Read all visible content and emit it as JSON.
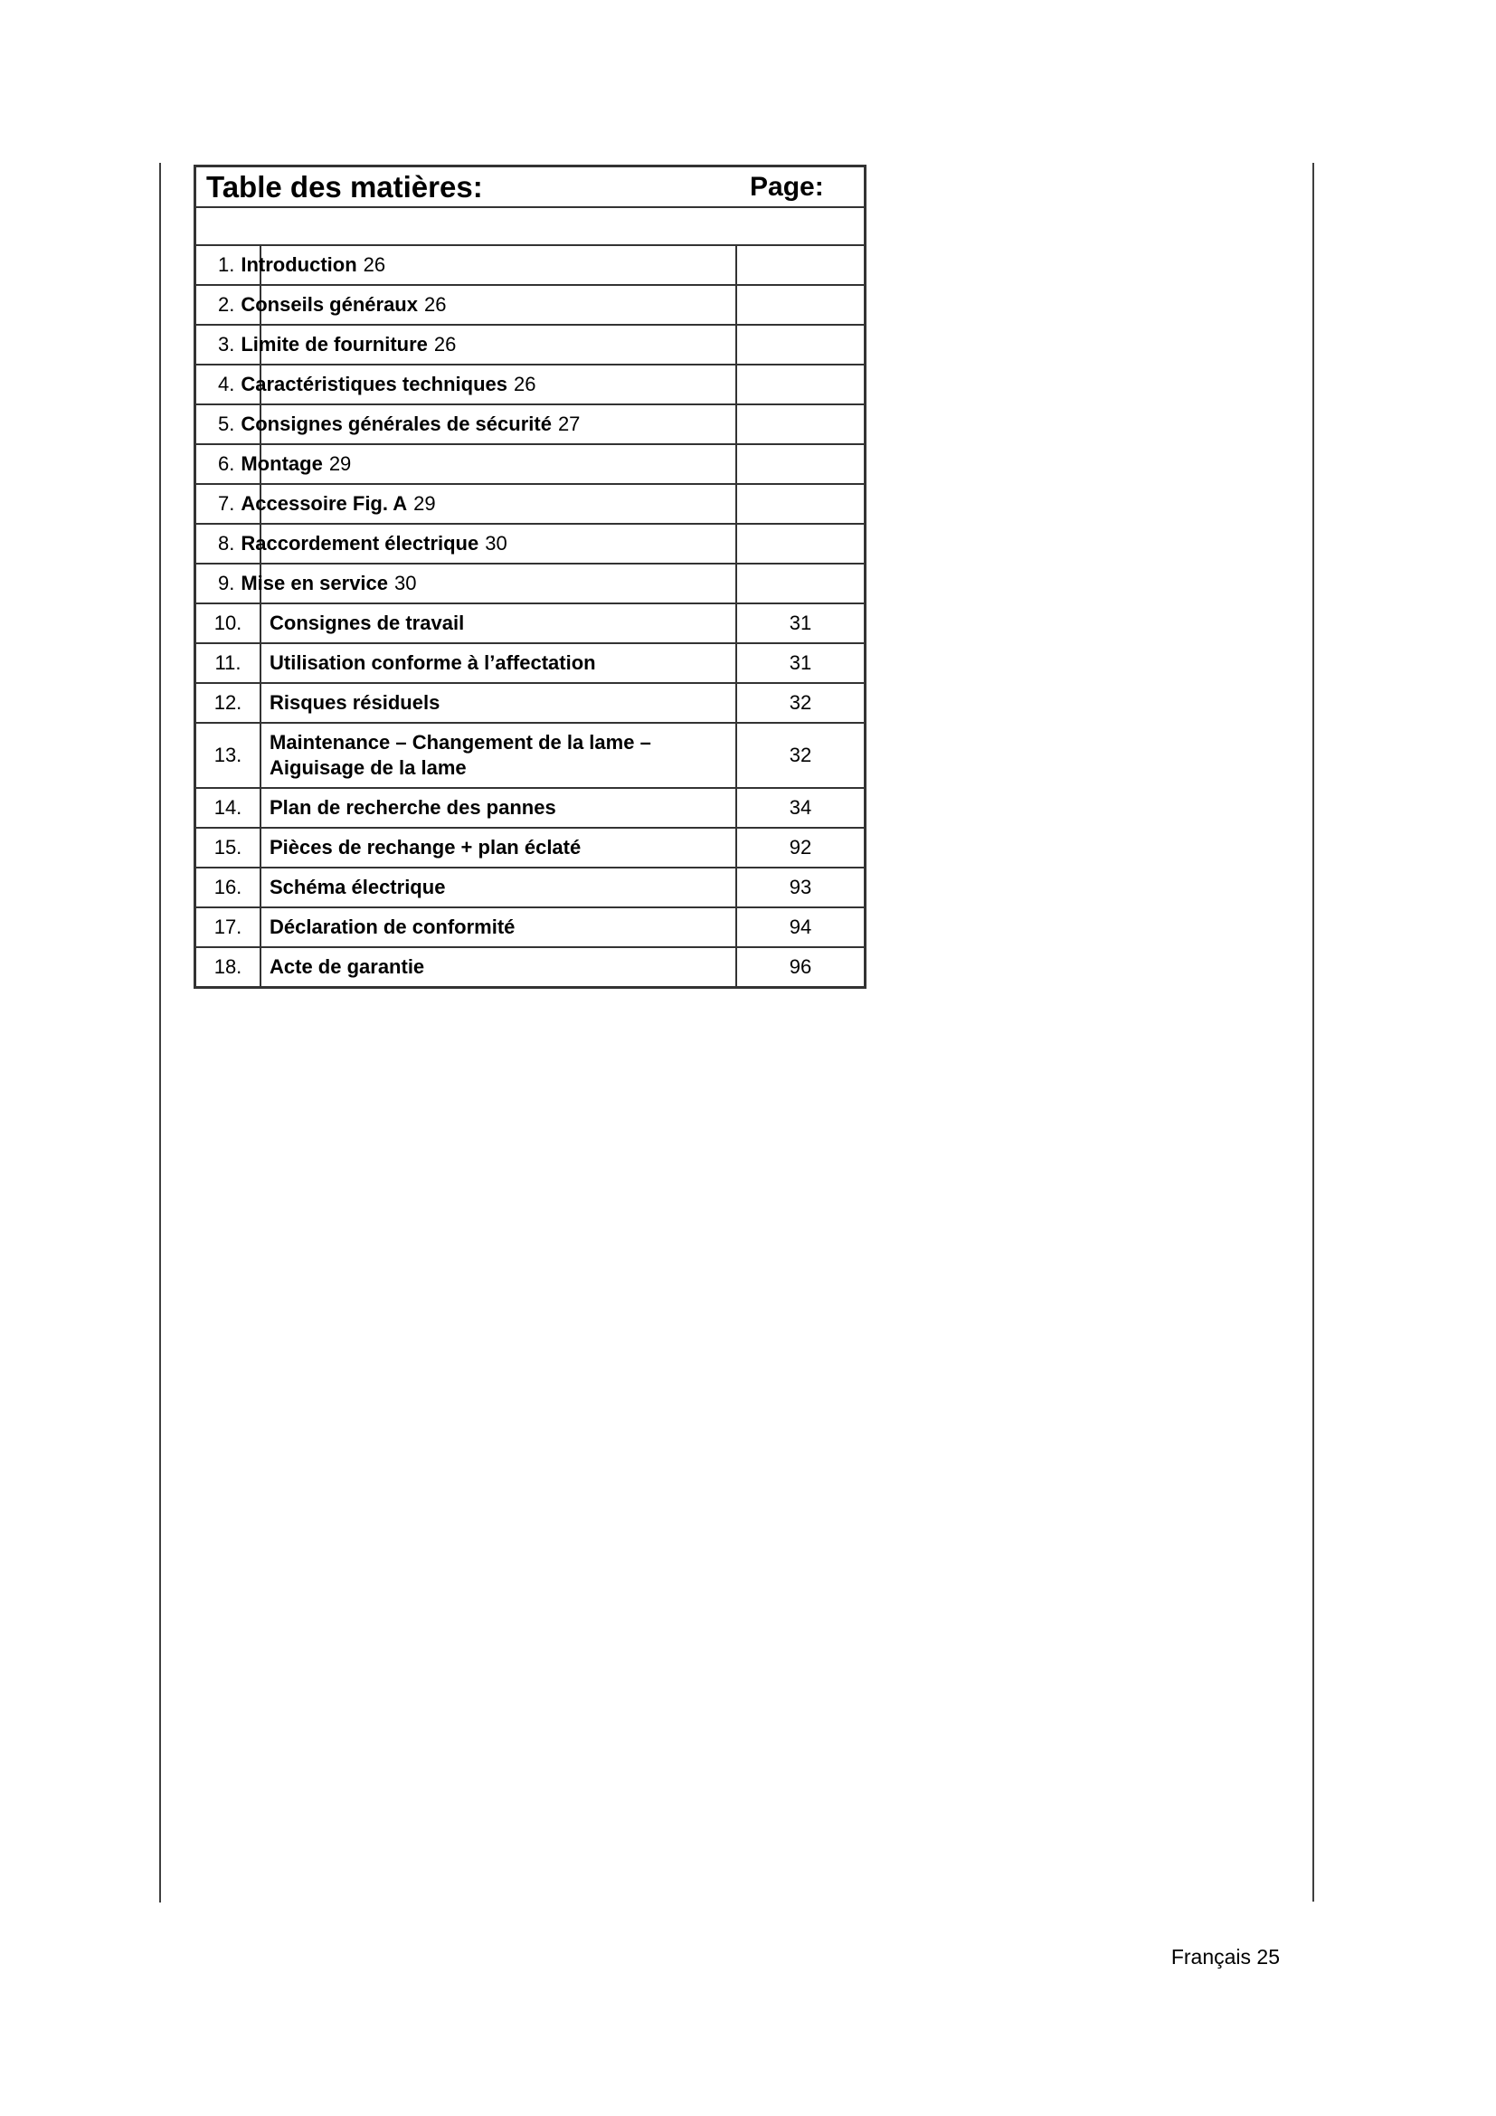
{
  "toc": {
    "header": {
      "title": "Table des matières:",
      "page_label": "Page:"
    },
    "rows": [
      {
        "num": "1.",
        "title": "Introduction",
        "page": "26"
      },
      {
        "num": "2.",
        "title": "Conseils généraux",
        "page": "26"
      },
      {
        "num": "3.",
        "title": "Limite de fourniture",
        "page": "26"
      },
      {
        "num": "4.",
        "title": "Caractéristiques techniques",
        "page": "26"
      },
      {
        "num": "5.",
        "title": "Consignes générales de sécurité",
        "page": "27"
      },
      {
        "num": "6.",
        "title": "Montage",
        "page": "29"
      },
      {
        "num": "7.",
        "title": "Accessoire Fig. A",
        "page": "29"
      },
      {
        "num": "8.",
        "title": "Raccordement électrique",
        "page": "30"
      },
      {
        "num": "9.",
        "title": "Mise en service",
        "page": "30"
      },
      {
        "num": "10.",
        "title": "Consignes de travail",
        "page": "31"
      },
      {
        "num": "11.",
        "title": "Utilisation conforme à l’affectation",
        "page": "31"
      },
      {
        "num": "12.",
        "title": "Risques résiduels",
        "page": "32"
      },
      {
        "num": "13.",
        "title": "Maintenance – Changement de la lame –",
        "title2": "Aiguisage de la lame",
        "page": "32"
      },
      {
        "num": "14.",
        "title": "Plan de recherche des pannes",
        "page": "34"
      },
      {
        "num": "15.",
        "title": "Pièces de rechange + plan éclaté",
        "page": "92"
      },
      {
        "num": "16.",
        "title": "Schéma électrique",
        "page": "93"
      },
      {
        "num": "17.",
        "title": "Déclaration de conformité",
        "page": "94"
      },
      {
        "num": "18.",
        "title": "Acte de garantie",
        "page": "96"
      }
    ]
  },
  "footer": {
    "label": "Français 25"
  }
}
